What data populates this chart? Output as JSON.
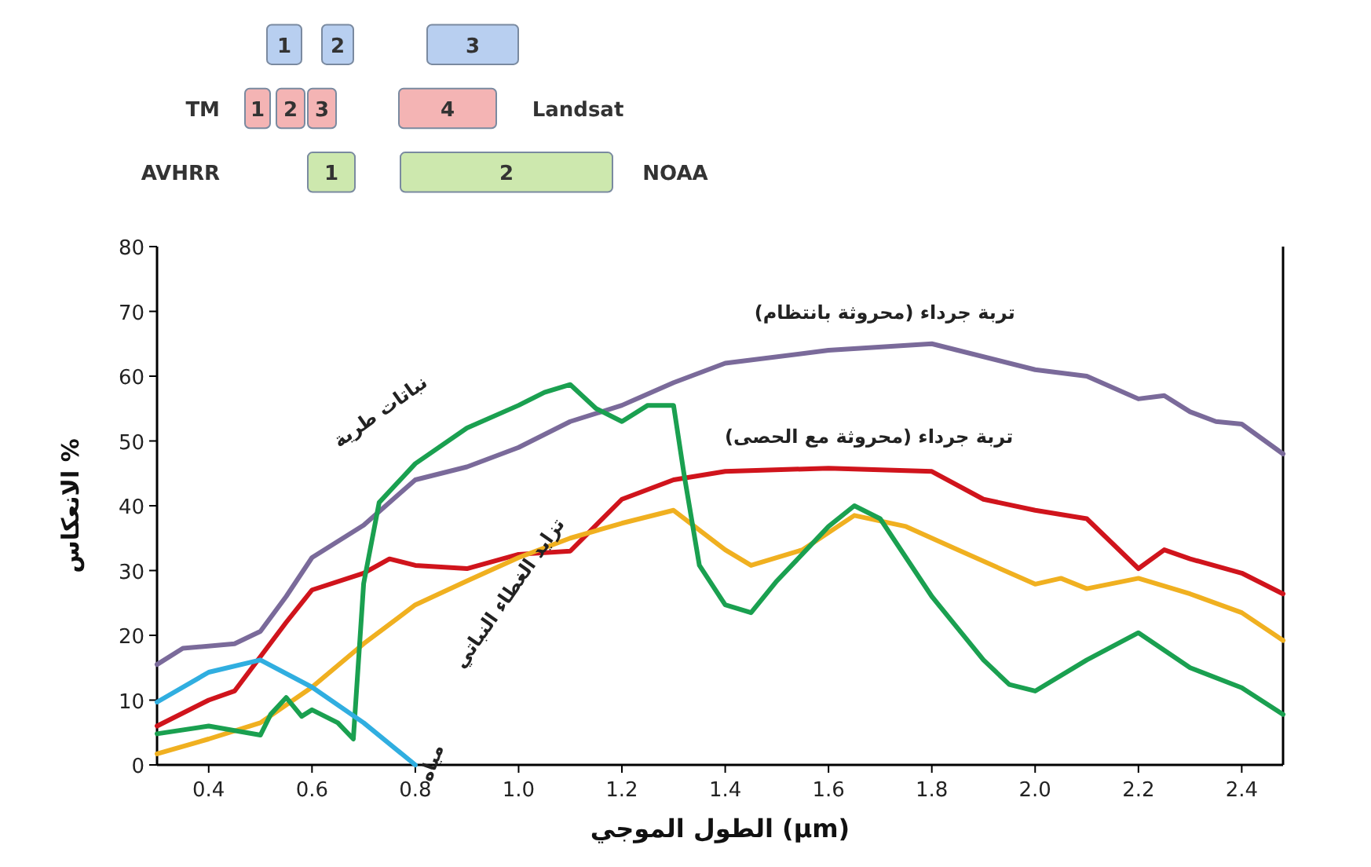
{
  "chart_data": [
    {
      "type": "other",
      "annotations": [
        "1",
        "2",
        "3",
        "TM",
        "1",
        "2",
        "3",
        "4",
        "Landsat",
        "AVHRR",
        "1",
        "2",
        "NOAA"
      ]
    },
    {
      "type": "line",
      "xlabel": "الطول الموجي (μm)",
      "ylabel": "الانعكاس %",
      "xlim": [
        0.3,
        2.48
      ],
      "ylim": [
        0,
        80
      ],
      "xticks": [
        0.4,
        0.6,
        0.8,
        {
          "value": 1,
          "label": "1.0"
        },
        1.2,
        1.4,
        1.6,
        1.8,
        {
          "value": 2,
          "label": "2.0"
        },
        2.2,
        2.4
      ],
      "yticks": [
        0,
        10,
        20,
        30,
        40,
        50,
        60,
        70,
        80
      ],
      "series": [
        {
          "name": "تربة جرداء (محروثة بانتظام)",
          "color": "#7a6a9a",
          "x": [
            0.3,
            0.35,
            0.45,
            0.5,
            0.55,
            0.6,
            0.7,
            0.8,
            0.9,
            1.0,
            1.1,
            1.2,
            1.3,
            1.4,
            1.6,
            1.8,
            2.0,
            2.1,
            2.2,
            2.25,
            2.3,
            2.35,
            2.4,
            2.48
          ],
          "values": [
            15.5,
            18,
            18.7,
            20.6,
            26,
            32,
            37,
            44,
            46,
            49,
            53,
            55.5,
            59,
            62,
            64,
            65,
            61,
            60,
            56.5,
            57,
            54.5,
            53,
            52.6,
            48
          ]
        },
        {
          "name": "تربة جرداء (محروثة مع الحصى)",
          "color": "#d0141c",
          "x": [
            0.3,
            0.4,
            0.45,
            0.5,
            0.55,
            0.6,
            0.7,
            0.75,
            0.8,
            0.9,
            1.0,
            1.1,
            1.2,
            1.3,
            1.4,
            1.6,
            1.8,
            1.9,
            2.0,
            2.1,
            2.2,
            2.25,
            2.3,
            2.4,
            2.48
          ],
          "values": [
            6,
            10,
            11.4,
            16.7,
            22,
            27,
            29.6,
            31.8,
            30.8,
            30.3,
            32.5,
            33,
            41,
            44,
            45.3,
            45.8,
            45.3,
            41,
            39.3,
            38,
            30.3,
            33.2,
            31.8,
            29.6,
            26.4
          ]
        },
        {
          "name": "تزايد الغطاء النباتي",
          "color": "#f0b020",
          "x": [
            0.3,
            0.4,
            0.5,
            0.6,
            0.7,
            0.8,
            0.9,
            1.0,
            1.1,
            1.2,
            1.3,
            1.4,
            1.45,
            1.55,
            1.65,
            1.75,
            1.85,
            2.0,
            2.05,
            2.1,
            2.2,
            2.3,
            2.4,
            2.48
          ],
          "values": [
            1.7,
            4,
            6.5,
            12,
            18.7,
            24.7,
            28.4,
            32,
            35,
            37.3,
            39.3,
            33.2,
            30.8,
            33.2,
            38.5,
            36.8,
            33.2,
            27.9,
            28.8,
            27.2,
            28.8,
            26.4,
            23.5,
            19.2
          ]
        },
        {
          "name": "نباتات طرية",
          "color": "#1aa050",
          "x": [
            0.3,
            0.4,
            0.5,
            0.52,
            0.55,
            0.58,
            0.6,
            0.65,
            0.68,
            0.7,
            0.73,
            0.8,
            0.9,
            1.0,
            1.05,
            1.1,
            1.15,
            1.2,
            1.25,
            1.3,
            1.32,
            1.35,
            1.4,
            1.45,
            1.5,
            1.6,
            1.65,
            1.7,
            1.8,
            1.9,
            1.95,
            2.0,
            2.1,
            2.2,
            2.3,
            2.4,
            2.48
          ],
          "values": [
            4.8,
            6,
            4.6,
            7.8,
            10.4,
            7.5,
            8.5,
            6.5,
            4,
            28,
            40.5,
            46.5,
            52,
            55.5,
            57.5,
            58.7,
            55,
            53,
            55.5,
            55.5,
            45,
            30.8,
            24.7,
            23.5,
            28.4,
            36.8,
            40,
            38,
            26,
            16.2,
            12.4,
            11.4,
            16.2,
            20.4,
            15,
            11.9,
            7.8
          ]
        },
        {
          "name": "مياه",
          "color": "#30aee0",
          "x": [
            0.3,
            0.4,
            0.5,
            0.6,
            0.7,
            0.8
          ],
          "values": [
            9.7,
            14.3,
            16.2,
            12,
            6.5,
            0
          ]
        }
      ]
    }
  ]
}
